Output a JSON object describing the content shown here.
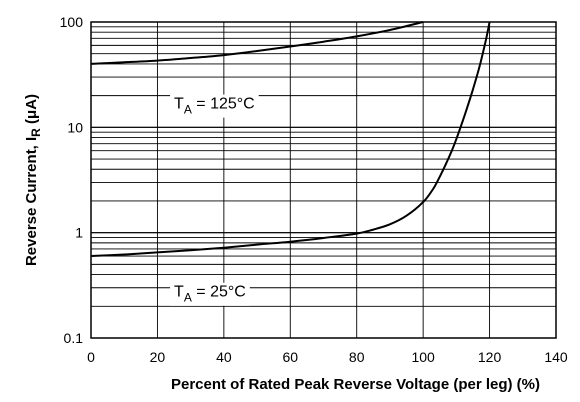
{
  "chart_data": {
    "type": "line",
    "xlabel": "Percent of Rated Peak Reverse Voltage (per leg) (%)",
    "ylabel_main": "Reverse Current, I",
    "ylabel_sub": "R",
    "ylabel_unit": " (μA)",
    "xlim": [
      0,
      140
    ],
    "ylim": [
      0.1,
      100
    ],
    "yscale": "log",
    "grid": true,
    "x_ticks": [
      0,
      20,
      40,
      60,
      80,
      100,
      120,
      140
    ],
    "x_tick_labels": [
      "0",
      "20",
      "40",
      "60",
      "80",
      "100",
      "120",
      "140"
    ],
    "y_ticks": [
      0.1,
      1,
      10,
      100
    ],
    "y_tick_labels": [
      "0.1",
      "1",
      "10",
      "100"
    ],
    "series": [
      {
        "name_main": "T",
        "name_sub": "A",
        "name_rest": " = 125°C",
        "x": [
          0,
          10,
          20,
          30,
          40,
          50,
          60,
          70,
          80,
          90,
          100
        ],
        "y": [
          40,
          41.5,
          43,
          45.5,
          48.5,
          53,
          58.5,
          65,
          73,
          84,
          100
        ]
      },
      {
        "name_main": "T",
        "name_sub": "A",
        "name_rest": " = 25°C",
        "x": [
          0,
          10,
          20,
          30,
          40,
          50,
          60,
          70,
          80,
          85,
          90,
          95,
          100,
          103,
          105,
          107,
          109,
          111,
          113,
          115,
          117,
          119,
          120
        ],
        "y": [
          0.6,
          0.62,
          0.65,
          0.68,
          0.72,
          0.77,
          0.82,
          0.89,
          0.98,
          1.07,
          1.2,
          1.45,
          1.95,
          2.6,
          3.4,
          4.6,
          6.4,
          9.5,
          14.5,
          23,
          38,
          70,
          100
        ]
      }
    ]
  }
}
